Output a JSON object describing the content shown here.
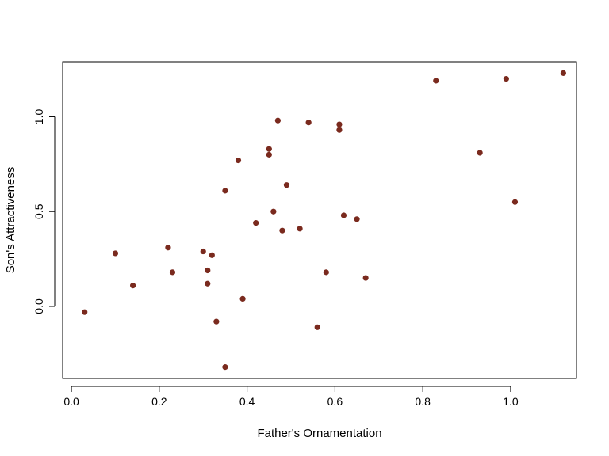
{
  "chart_data": {
    "type": "scatter",
    "title": "",
    "xlabel": "Father's Ornamentation",
    "ylabel": "Son's Attractiveness",
    "xlim": [
      -0.02,
      1.15
    ],
    "ylim": [
      -0.38,
      1.29
    ],
    "x_ticks": [
      0.0,
      0.2,
      0.4,
      0.6,
      0.8,
      1.0
    ],
    "x_tick_labels": [
      "0.0",
      "0.2",
      "0.4",
      "0.6",
      "0.8",
      "1.0"
    ],
    "y_ticks": [
      0.0,
      0.5,
      1.0
    ],
    "y_tick_labels": [
      "0.0",
      "0.5",
      "1.0"
    ],
    "grid": false,
    "legend": "none",
    "point_color": "#7a2a1e",
    "points": [
      {
        "x": 0.03,
        "y": -0.03
      },
      {
        "x": 0.1,
        "y": 0.28
      },
      {
        "x": 0.14,
        "y": 0.11
      },
      {
        "x": 0.22,
        "y": 0.31
      },
      {
        "x": 0.23,
        "y": 0.18
      },
      {
        "x": 0.3,
        "y": 0.29
      },
      {
        "x": 0.31,
        "y": 0.19
      },
      {
        "x": 0.31,
        "y": 0.12
      },
      {
        "x": 0.32,
        "y": 0.27
      },
      {
        "x": 0.33,
        "y": -0.08
      },
      {
        "x": 0.35,
        "y": 0.61
      },
      {
        "x": 0.35,
        "y": -0.32
      },
      {
        "x": 0.38,
        "y": 0.77
      },
      {
        "x": 0.39,
        "y": 0.04
      },
      {
        "x": 0.42,
        "y": 0.44
      },
      {
        "x": 0.45,
        "y": 0.83
      },
      {
        "x": 0.45,
        "y": 0.8
      },
      {
        "x": 0.46,
        "y": 0.5
      },
      {
        "x": 0.47,
        "y": 0.98
      },
      {
        "x": 0.48,
        "y": 0.4
      },
      {
        "x": 0.49,
        "y": 0.64
      },
      {
        "x": 0.52,
        "y": 0.41
      },
      {
        "x": 0.54,
        "y": 0.97
      },
      {
        "x": 0.56,
        "y": -0.11
      },
      {
        "x": 0.58,
        "y": 0.18
      },
      {
        "x": 0.61,
        "y": 0.96
      },
      {
        "x": 0.61,
        "y": 0.93
      },
      {
        "x": 0.62,
        "y": 0.48
      },
      {
        "x": 0.65,
        "y": 0.46
      },
      {
        "x": 0.67,
        "y": 0.15
      },
      {
        "x": 0.83,
        "y": 1.19
      },
      {
        "x": 0.93,
        "y": 0.81
      },
      {
        "x": 0.99,
        "y": 1.2
      },
      {
        "x": 1.01,
        "y": 0.55
      },
      {
        "x": 1.12,
        "y": 1.23
      }
    ]
  }
}
